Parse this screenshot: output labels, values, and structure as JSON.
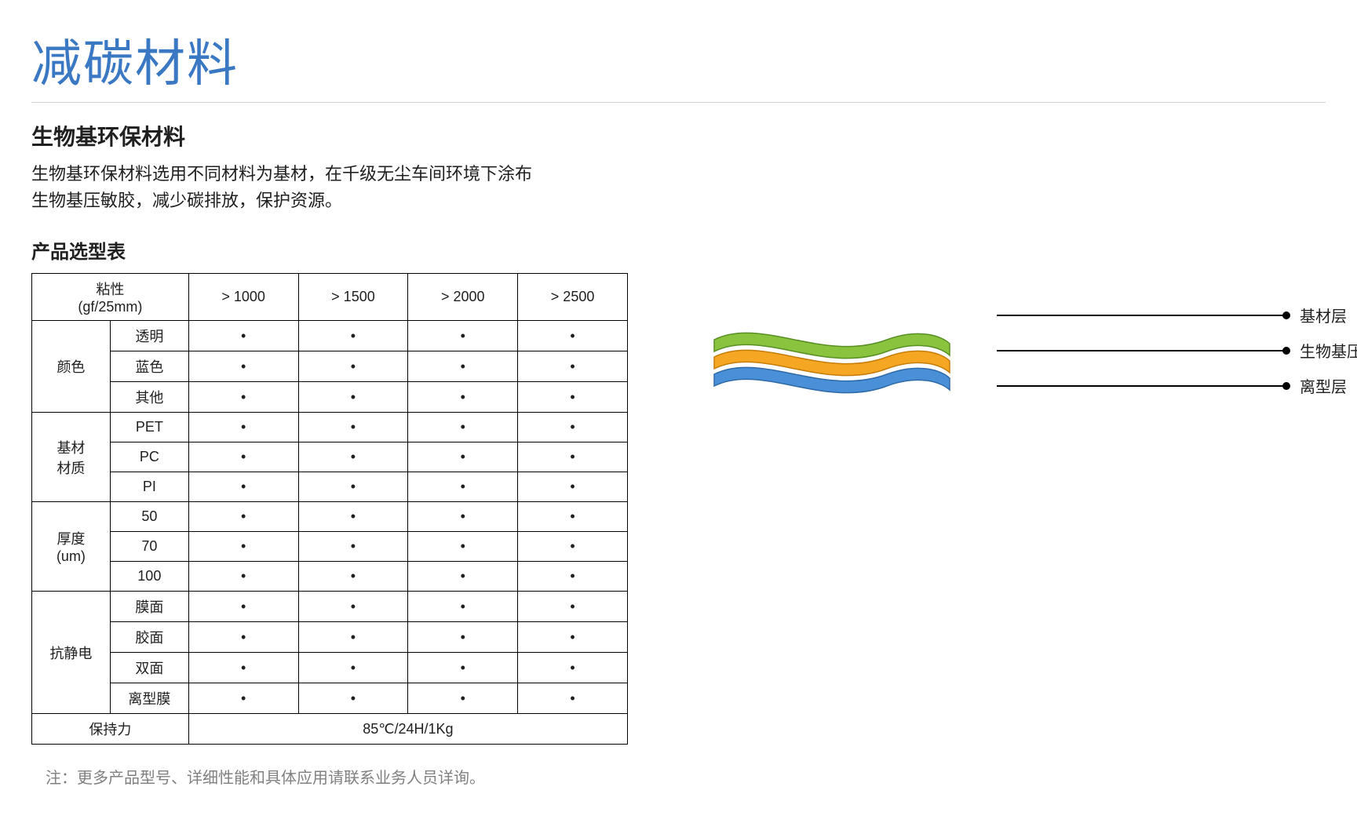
{
  "title": "减碳材料",
  "subtitle": "生物基环保材料",
  "description_line1": "生物基环保材料选用不同材料为基材，在千级无尘车间环境下涂布",
  "description_line2": "生物基压敏胶，减少碳排放，保护资源。",
  "table_title": "产品选型表",
  "table": {
    "header_label_line1": "粘性",
    "header_label_line2": "(gf/25mm)",
    "columns": [
      "> 1000",
      "> 1500",
      "> 2000",
      "> 2500"
    ],
    "groups": [
      {
        "label": "颜色",
        "rows": [
          {
            "sub": "透明",
            "cells": [
              "•",
              "•",
              "•",
              "•"
            ]
          },
          {
            "sub": "蓝色",
            "cells": [
              "•",
              "•",
              "•",
              "•"
            ]
          },
          {
            "sub": "其他",
            "cells": [
              "•",
              "•",
              "•",
              "•"
            ]
          }
        ]
      },
      {
        "label": "基材\n材质",
        "rows": [
          {
            "sub": "PET",
            "cells": [
              "•",
              "•",
              "•",
              "•"
            ]
          },
          {
            "sub": "PC",
            "cells": [
              "•",
              "•",
              "•",
              "•"
            ]
          },
          {
            "sub": "PI",
            "cells": [
              "•",
              "•",
              "•",
              "•"
            ]
          }
        ]
      },
      {
        "label": "厚度\n(um)",
        "rows": [
          {
            "sub": "50",
            "cells": [
              "•",
              "•",
              "•",
              "•"
            ]
          },
          {
            "sub": "70",
            "cells": [
              "•",
              "•",
              "•",
              "•"
            ]
          },
          {
            "sub": "100",
            "cells": [
              "•",
              "•",
              "•",
              "•"
            ]
          }
        ]
      },
      {
        "label": "抗静电",
        "rows": [
          {
            "sub": "膜面",
            "cells": [
              "•",
              "•",
              "•",
              "•"
            ]
          },
          {
            "sub": "胶面",
            "cells": [
              "•",
              "•",
              "•",
              "•"
            ]
          },
          {
            "sub": "双面",
            "cells": [
              "•",
              "•",
              "•",
              "•"
            ]
          },
          {
            "sub": "离型膜",
            "cells": [
              "•",
              "•",
              "•",
              "•"
            ]
          }
        ]
      }
    ],
    "footer_label": "保持力",
    "footer_value": "85℃/24H/1Kg"
  },
  "footnote": "注：更多产品型号、详细性能和具体应用请联系业务人员详询。",
  "diagram": {
    "layers": [
      {
        "name": "基材层",
        "fill": "#8ac33e",
        "edge": "#5a8f25"
      },
      {
        "name": "生物基压敏胶",
        "fill": "#f5a623",
        "edge": "#c77d0a"
      },
      {
        "name": "离型层",
        "fill": "#4a90d9",
        "edge": "#2f6aa8"
      }
    ]
  },
  "colors": {
    "title": "#3b78c4",
    "text": "#202020",
    "muted": "#808080",
    "border": "#000000",
    "divider": "#d0d0d0"
  }
}
